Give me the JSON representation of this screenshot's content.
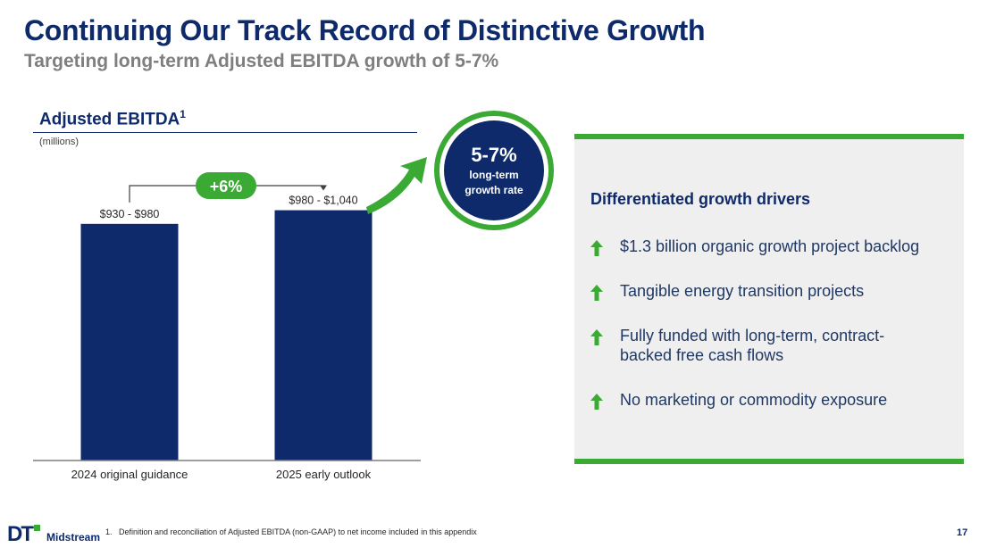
{
  "header": {
    "title": "Continuing Our Track Record of Distinctive Growth",
    "subtitle": "Targeting long-term Adjusted EBITDA growth of 5-7%"
  },
  "chart_data": {
    "type": "bar",
    "title": "Adjusted EBITDA",
    "title_superscript": "1",
    "units": "(millions)",
    "categories": [
      "2024 original guidance",
      "2025 early outlook"
    ],
    "values": [
      955,
      1010
    ],
    "data_labels": [
      "$930 - $980",
      "$980 - $1,040"
    ],
    "ylim": [
      0,
      1030
    ],
    "grid": false,
    "growth_label": "+6%",
    "bar_color": "#0e2a6b"
  },
  "growth_circle": {
    "rate": "5-7%",
    "label_line1": "long-term",
    "label_line2": "growth rate"
  },
  "drivers": {
    "heading": "Differentiated growth drivers",
    "items": [
      "$1.3 billion organic growth project backlog",
      "Tangible energy transition projects",
      "Fully funded with long-term, contract-backed free cash flows",
      "No marketing or commodity exposure"
    ]
  },
  "footer": {
    "footnote": "1.   Definition and reconciliation of Adjusted EBITDA (non-GAAP) to net income included in this appendix",
    "page_number": "17",
    "logo_mark": "DT",
    "logo_name": "Midstream"
  },
  "colors": {
    "navy": "#0e2a6b",
    "green": "#3aaa35",
    "panel": "#efefef"
  }
}
